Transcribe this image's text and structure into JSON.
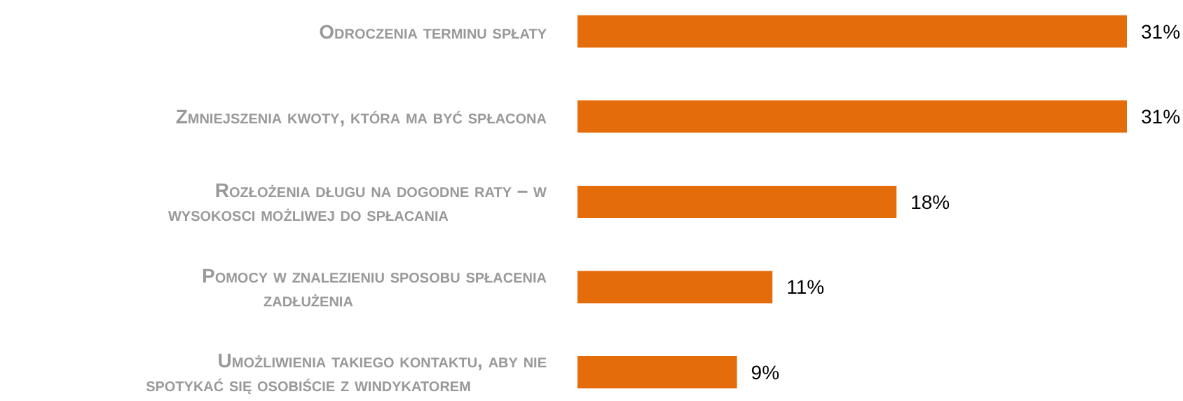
{
  "chart_data": {
    "type": "bar",
    "orientation": "horizontal",
    "categories": [
      "Odroczenia terminu spłaty",
      "Zmniejszenia kwoty, która ma być spłacona",
      "Rozłożenia długu na dogodne raty – w wysokosci możliwej do spłacania",
      "Pomocy w znalezieniu sposobu spłacenia zadłużenia",
      "Umożliwienia takiego kontaktu, aby nie spotykać się osobiście z windykatorem"
    ],
    "values": [
      31,
      31,
      18,
      11,
      9
    ],
    "value_labels": [
      "31%",
      "31%",
      "18%",
      "11%",
      "9%"
    ],
    "color": "#e46c0a"
  }
}
